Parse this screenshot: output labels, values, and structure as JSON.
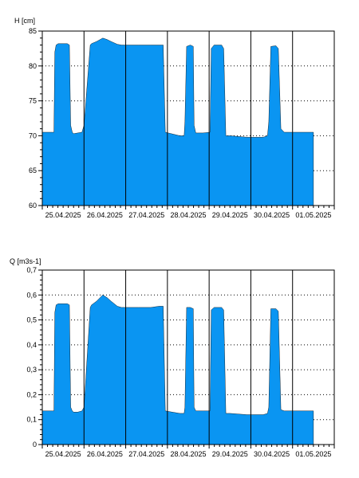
{
  "chart_data": [
    {
      "type": "area",
      "ylabel": "H [cm]",
      "ylim": [
        60,
        85
      ],
      "yticks": [
        "60",
        "65",
        "70",
        "75",
        "80",
        "85"
      ],
      "xlim": [
        0,
        7
      ],
      "xticks": [
        "25.04.2025",
        "26.04.2025",
        "27.04.2025",
        "28.04.2025",
        "29.04.2025",
        "30.04.2025",
        "01.05.2025"
      ],
      "fill_color": "#0a95f2",
      "grid": "dotted horizontal at major ticks, solid vertical at day boundaries",
      "series": [
        {
          "x": [
            0,
            0.28,
            0.3,
            0.33,
            0.38,
            0.45,
            0.6,
            0.65,
            0.68,
            0.72,
            0.75,
            0.85,
            0.95,
            1.0,
            1.15,
            1.18,
            1.3,
            1.45,
            1.55,
            1.65,
            1.8,
            1.9,
            2.0,
            2.3,
            2.6,
            2.8,
            2.9,
            2.95,
            3.3,
            3.4,
            3.42,
            3.46,
            3.55,
            3.62,
            3.64,
            3.68,
            3.7,
            3.85,
            4.02,
            4.05,
            4.12,
            4.3,
            4.35,
            4.4,
            4.5,
            4.9,
            4.95,
            5.3,
            5.4,
            5.43,
            5.48,
            5.6,
            5.66,
            5.72,
            5.8,
            6.0,
            6.5
          ],
          "y": [
            70.5,
            70.5,
            82.0,
            83.0,
            83.2,
            83.2,
            83.2,
            83.0,
            71.5,
            70.5,
            70.3,
            70.4,
            70.5,
            71.5,
            83.0,
            83.2,
            83.5,
            84.0,
            83.8,
            83.5,
            83.1,
            83.0,
            83.0,
            83.0,
            83.0,
            83.0,
            83.0,
            70.5,
            70.0,
            70.0,
            72.0,
            82.8,
            83.0,
            82.8,
            71.5,
            70.4,
            70.4,
            70.4,
            70.5,
            82.5,
            83.0,
            83.0,
            82.5,
            70.0,
            70.0,
            69.8,
            69.8,
            69.8,
            70.0,
            72.0,
            82.8,
            82.9,
            82.5,
            71.0,
            70.5,
            70.5,
            70.5
          ]
        }
      ]
    },
    {
      "type": "area",
      "ylabel": "Q [m3s-1]",
      "ylim": [
        0,
        0.7
      ],
      "yticks": [
        "0",
        "0,1",
        "0,2",
        "0,3",
        "0,4",
        "0,5",
        "0,6",
        "0,7"
      ],
      "xlim": [
        0,
        7
      ],
      "xticks": [
        "25.04.2025",
        "26.04.2025",
        "27.04.2025",
        "28.04.2025",
        "29.04.2025",
        "30.04.2025",
        "01.05.2025"
      ],
      "fill_color": "#0a95f2",
      "grid": "dotted horizontal at major ticks, solid vertical at day boundaries",
      "series": [
        {
          "x": [
            0,
            0.28,
            0.3,
            0.33,
            0.38,
            0.45,
            0.6,
            0.65,
            0.68,
            0.72,
            0.75,
            0.85,
            0.95,
            1.0,
            1.15,
            1.18,
            1.3,
            1.45,
            1.55,
            1.65,
            1.8,
            1.9,
            2.0,
            2.3,
            2.6,
            2.8,
            2.9,
            2.95,
            3.3,
            3.4,
            3.42,
            3.46,
            3.55,
            3.62,
            3.64,
            3.68,
            3.7,
            3.85,
            4.02,
            4.05,
            4.12,
            4.3,
            4.35,
            4.4,
            4.5,
            4.9,
            4.95,
            5.3,
            5.4,
            5.43,
            5.48,
            5.6,
            5.66,
            5.72,
            5.8,
            6.0,
            6.5
          ],
          "y": [
            0.135,
            0.135,
            0.53,
            0.56,
            0.565,
            0.565,
            0.565,
            0.56,
            0.15,
            0.135,
            0.13,
            0.13,
            0.135,
            0.15,
            0.55,
            0.56,
            0.575,
            0.6,
            0.59,
            0.575,
            0.555,
            0.55,
            0.55,
            0.55,
            0.55,
            0.555,
            0.555,
            0.135,
            0.125,
            0.125,
            0.15,
            0.55,
            0.55,
            0.545,
            0.15,
            0.135,
            0.135,
            0.135,
            0.135,
            0.54,
            0.55,
            0.55,
            0.54,
            0.125,
            0.125,
            0.12,
            0.12,
            0.12,
            0.125,
            0.15,
            0.545,
            0.545,
            0.535,
            0.14,
            0.135,
            0.135,
            0.135
          ]
        }
      ]
    }
  ]
}
